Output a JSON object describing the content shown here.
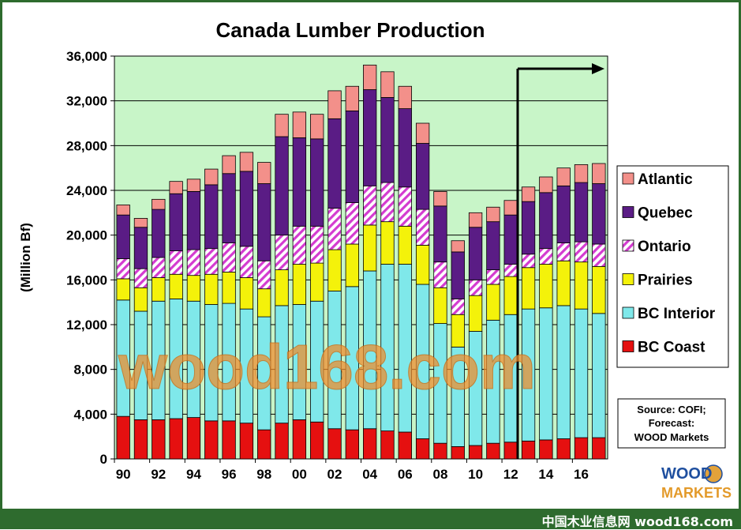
{
  "watermark": "wood168.com",
  "footer_text": "中国木业信息网 wood168.com",
  "logo": {
    "line1": "WOOD",
    "line2": "MARKETS"
  },
  "source_note": [
    "Source: COFI;",
    "Forecast:",
    "WOOD Markets"
  ],
  "colors": {
    "BC Coast": "#e51010",
    "BC Interior": "#7fe8ea",
    "Prairies": "#f4f20a",
    "Ontario": "#d43bd0",
    "Quebec": "#5a1c85",
    "Atlantic": "#f3908a",
    "plot_bg": "#c8f5c8",
    "frame": "#2e6b2e"
  },
  "chart_data": {
    "type": "bar",
    "stacked": true,
    "title": "Canada Lumber Production",
    "xlabel": "",
    "ylabel": "(Million  Bf)",
    "ylim": [
      0,
      36000
    ],
    "yticks": [
      0,
      4000,
      8000,
      12000,
      16000,
      20000,
      24000,
      28000,
      32000,
      36000
    ],
    "ytick_labels": [
      "0",
      "4,000",
      "8,000",
      "12,000",
      "16,000",
      "20,000",
      "24,000",
      "28,000",
      "32,000",
      "36,000"
    ],
    "xtick_labels": [
      "90",
      "92",
      "94",
      "96",
      "98",
      "00",
      "02",
      "04",
      "06",
      "08",
      "10",
      "12",
      "14",
      "16"
    ],
    "categories": [
      "1990",
      "1991",
      "1992",
      "1993",
      "1994",
      "1995",
      "1996",
      "1997",
      "1998",
      "1999",
      "2000",
      "2001",
      "2002",
      "2003",
      "2004",
      "2005",
      "2006",
      "2007",
      "2008",
      "2009",
      "2010",
      "2011",
      "2012",
      "2013",
      "2014",
      "2015",
      "2016",
      "2017"
    ],
    "grid": true,
    "legend_position": "right",
    "forecast_start": "2013",
    "series": [
      {
        "name": "BC Coast",
        "values": [
          3800,
          3500,
          3500,
          3600,
          3700,
          3400,
          3400,
          3200,
          2600,
          3200,
          3500,
          3300,
          2700,
          2600,
          2700,
          2500,
          2400,
          1800,
          1400,
          1100,
          1200,
          1400,
          1500,
          1600,
          1700,
          1800,
          1900,
          1900
        ]
      },
      {
        "name": "BC Interior",
        "values": [
          10400,
          9700,
          10600,
          10700,
          10400,
          10400,
          10500,
          10200,
          10100,
          10500,
          10300,
          10800,
          12300,
          12800,
          14100,
          14900,
          15000,
          13800,
          10700,
          8900,
          10200,
          11000,
          11400,
          11800,
          11800,
          11900,
          11500,
          11100
        ]
      },
      {
        "name": "Prairies",
        "values": [
          1900,
          2100,
          2100,
          2200,
          2300,
          2700,
          2800,
          2800,
          2500,
          3200,
          3600,
          3400,
          3700,
          3800,
          4100,
          3800,
          3400,
          3500,
          3200,
          2900,
          3200,
          3200,
          3400,
          3700,
          3900,
          4000,
          4200,
          4200
        ]
      },
      {
        "name": "Ontario",
        "values": [
          1800,
          1700,
          1800,
          2100,
          2300,
          2300,
          2600,
          2800,
          2500,
          3100,
          3400,
          3300,
          3700,
          3700,
          3500,
          3500,
          3500,
          3200,
          2300,
          1400,
          1400,
          1300,
          1100,
          1200,
          1400,
          1600,
          1800,
          2000
        ]
      },
      {
        "name": "Quebec",
        "values": [
          3900,
          3700,
          4300,
          5100,
          5200,
          5700,
          6200,
          6700,
          6900,
          8800,
          7900,
          7800,
          8000,
          8200,
          8600,
          7600,
          7000,
          5900,
          5000,
          4200,
          4700,
          4300,
          4400,
          4700,
          5000,
          5100,
          5300,
          5400
        ]
      },
      {
        "name": "Atlantic",
        "values": [
          900,
          800,
          900,
          1100,
          1100,
          1400,
          1600,
          1700,
          1900,
          2000,
          2300,
          2200,
          2500,
          2200,
          2200,
          2300,
          2000,
          1800,
          1300,
          1000,
          1300,
          1300,
          1300,
          1300,
          1400,
          1600,
          1600,
          1800
        ]
      }
    ]
  }
}
